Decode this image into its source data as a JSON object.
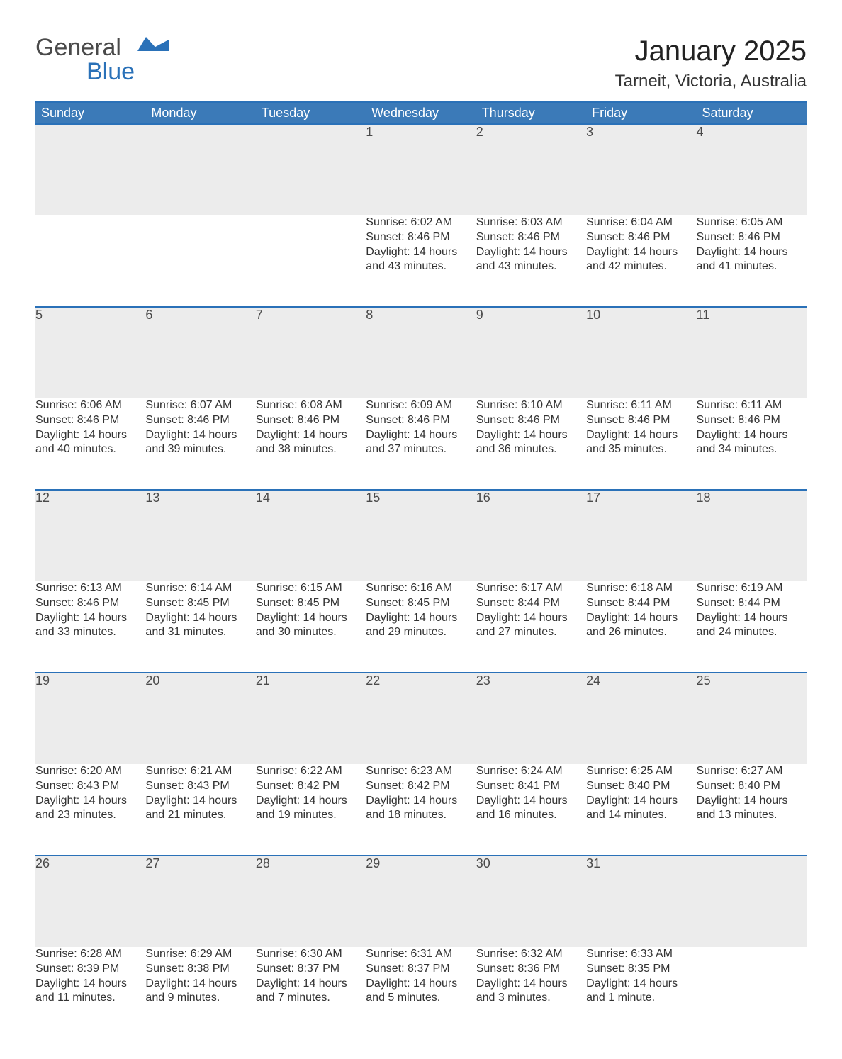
{
  "logo": {
    "word1": "General",
    "word2": "Blue"
  },
  "title": "January 2025",
  "location": "Tarneit, Victoria, Australia",
  "colors": {
    "header_blue": "#3b7ab8",
    "rule_blue": "#2a71b8",
    "daynum_bg": "#ececec",
    "text": "#333333",
    "page_bg": "#ffffff"
  },
  "typography": {
    "title_fontsize": 40,
    "location_fontsize": 24,
    "dayheader_fontsize": 18,
    "daynum_fontsize": 18,
    "cell_fontsize": 16
  },
  "layout": {
    "columns": 7,
    "weeks": 5,
    "start_day_index": 3
  },
  "day_headers": [
    "Sunday",
    "Monday",
    "Tuesday",
    "Wednesday",
    "Thursday",
    "Friday",
    "Saturday"
  ],
  "days": [
    {
      "n": 1,
      "sunrise": "6:02 AM",
      "sunset": "8:46 PM",
      "daylight": "14 hours and 43 minutes."
    },
    {
      "n": 2,
      "sunrise": "6:03 AM",
      "sunset": "8:46 PM",
      "daylight": "14 hours and 43 minutes."
    },
    {
      "n": 3,
      "sunrise": "6:04 AM",
      "sunset": "8:46 PM",
      "daylight": "14 hours and 42 minutes."
    },
    {
      "n": 4,
      "sunrise": "6:05 AM",
      "sunset": "8:46 PM",
      "daylight": "14 hours and 41 minutes."
    },
    {
      "n": 5,
      "sunrise": "6:06 AM",
      "sunset": "8:46 PM",
      "daylight": "14 hours and 40 minutes."
    },
    {
      "n": 6,
      "sunrise": "6:07 AM",
      "sunset": "8:46 PM",
      "daylight": "14 hours and 39 minutes."
    },
    {
      "n": 7,
      "sunrise": "6:08 AM",
      "sunset": "8:46 PM",
      "daylight": "14 hours and 38 minutes."
    },
    {
      "n": 8,
      "sunrise": "6:09 AM",
      "sunset": "8:46 PM",
      "daylight": "14 hours and 37 minutes."
    },
    {
      "n": 9,
      "sunrise": "6:10 AM",
      "sunset": "8:46 PM",
      "daylight": "14 hours and 36 minutes."
    },
    {
      "n": 10,
      "sunrise": "6:11 AM",
      "sunset": "8:46 PM",
      "daylight": "14 hours and 35 minutes."
    },
    {
      "n": 11,
      "sunrise": "6:11 AM",
      "sunset": "8:46 PM",
      "daylight": "14 hours and 34 minutes."
    },
    {
      "n": 12,
      "sunrise": "6:13 AM",
      "sunset": "8:46 PM",
      "daylight": "14 hours and 33 minutes."
    },
    {
      "n": 13,
      "sunrise": "6:14 AM",
      "sunset": "8:45 PM",
      "daylight": "14 hours and 31 minutes."
    },
    {
      "n": 14,
      "sunrise": "6:15 AM",
      "sunset": "8:45 PM",
      "daylight": "14 hours and 30 minutes."
    },
    {
      "n": 15,
      "sunrise": "6:16 AM",
      "sunset": "8:45 PM",
      "daylight": "14 hours and 29 minutes."
    },
    {
      "n": 16,
      "sunrise": "6:17 AM",
      "sunset": "8:44 PM",
      "daylight": "14 hours and 27 minutes."
    },
    {
      "n": 17,
      "sunrise": "6:18 AM",
      "sunset": "8:44 PM",
      "daylight": "14 hours and 26 minutes."
    },
    {
      "n": 18,
      "sunrise": "6:19 AM",
      "sunset": "8:44 PM",
      "daylight": "14 hours and 24 minutes."
    },
    {
      "n": 19,
      "sunrise": "6:20 AM",
      "sunset": "8:43 PM",
      "daylight": "14 hours and 23 minutes."
    },
    {
      "n": 20,
      "sunrise": "6:21 AM",
      "sunset": "8:43 PM",
      "daylight": "14 hours and 21 minutes."
    },
    {
      "n": 21,
      "sunrise": "6:22 AM",
      "sunset": "8:42 PM",
      "daylight": "14 hours and 19 minutes."
    },
    {
      "n": 22,
      "sunrise": "6:23 AM",
      "sunset": "8:42 PM",
      "daylight": "14 hours and 18 minutes."
    },
    {
      "n": 23,
      "sunrise": "6:24 AM",
      "sunset": "8:41 PM",
      "daylight": "14 hours and 16 minutes."
    },
    {
      "n": 24,
      "sunrise": "6:25 AM",
      "sunset": "8:40 PM",
      "daylight": "14 hours and 14 minutes."
    },
    {
      "n": 25,
      "sunrise": "6:27 AM",
      "sunset": "8:40 PM",
      "daylight": "14 hours and 13 minutes."
    },
    {
      "n": 26,
      "sunrise": "6:28 AM",
      "sunset": "8:39 PM",
      "daylight": "14 hours and 11 minutes."
    },
    {
      "n": 27,
      "sunrise": "6:29 AM",
      "sunset": "8:38 PM",
      "daylight": "14 hours and 9 minutes."
    },
    {
      "n": 28,
      "sunrise": "6:30 AM",
      "sunset": "8:37 PM",
      "daylight": "14 hours and 7 minutes."
    },
    {
      "n": 29,
      "sunrise": "6:31 AM",
      "sunset": "8:37 PM",
      "daylight": "14 hours and 5 minutes."
    },
    {
      "n": 30,
      "sunrise": "6:32 AM",
      "sunset": "8:36 PM",
      "daylight": "14 hours and 3 minutes."
    },
    {
      "n": 31,
      "sunrise": "6:33 AM",
      "sunset": "8:35 PM",
      "daylight": "14 hours and 1 minute."
    }
  ],
  "labels": {
    "sunrise_prefix": "Sunrise: ",
    "sunset_prefix": "Sunset: ",
    "daylight_prefix": "Daylight: "
  }
}
